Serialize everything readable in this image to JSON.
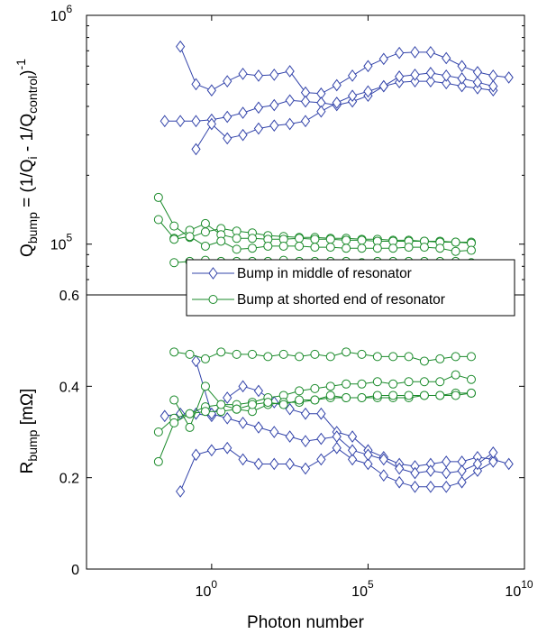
{
  "colors": {
    "blue": "#3344aa",
    "green": "#1a8a2a"
  },
  "xlabel": "Photon number",
  "x_ticks": [
    {
      "value": 0,
      "base": "10",
      "exp": "0"
    },
    {
      "value": 5,
      "base": "10",
      "exp": "5"
    },
    {
      "value": 10,
      "base": "10",
      "exp": "10"
    }
  ],
  "legend": {
    "entries": [
      {
        "label": "Bump in middle of resonator",
        "color": "#3344aa",
        "marker": "diamond"
      },
      {
        "label": "Bump at shorted end of resonator",
        "color": "#1a8a2a",
        "marker": "circle"
      }
    ]
  },
  "chart_data": [
    {
      "type": "line",
      "panel": "top",
      "ylabel": {
        "main": "Q",
        "main_sub": "bump",
        "eq": " = (1/Q",
        "sub1": "i",
        "mid": " - 1/Q",
        "sub2": "control",
        "close": ")",
        "sup": "-1"
      },
      "xscale": "log",
      "yscale": "log",
      "xlim": [
        -4,
        10
      ],
      "ylim": [
        60000,
        1000000
      ],
      "y_ticks": [
        {
          "value": 100000,
          "base": "10",
          "exp": "5"
        },
        {
          "value": 1000000,
          "base": "10",
          "exp": "6"
        }
      ],
      "series": [
        {
          "name": "Bump in middle of resonator",
          "color": "#3344aa",
          "marker": "diamond",
          "x": [
            -1,
            -0.5,
            0,
            0.5,
            1,
            1.5,
            2,
            2.5,
            3,
            3.5,
            4,
            4.5,
            5,
            5.5,
            6,
            6.5,
            7,
            7.5,
            8,
            8.5,
            9,
            9.5
          ],
          "y": [
            730000,
            500000,
            470000,
            515000,
            555000,
            545000,
            550000,
            570000,
            460000,
            455000,
            495000,
            545000,
            600000,
            645000,
            685000,
            690000,
            690000,
            650000,
            600000,
            565000,
            545000,
            535000
          ]
        },
        {
          "name": "",
          "color": "#3344aa",
          "marker": "diamond",
          "x": [
            -1.5,
            -1,
            -0.5,
            0,
            0.5,
            1,
            1.5,
            2,
            2.5,
            3,
            3.5,
            4,
            4.5,
            5,
            5.5,
            6,
            6.5,
            7,
            7.5,
            8,
            8.5,
            9
          ],
          "y": [
            345000,
            345000,
            345000,
            350000,
            360000,
            375000,
            395000,
            405000,
            425000,
            420000,
            415000,
            405000,
            420000,
            445000,
            490000,
            510000,
            515000,
            515000,
            505000,
            490000,
            480000,
            470000
          ]
        },
        {
          "name": "",
          "color": "#3344aa",
          "marker": "diamond",
          "x": [
            -0.5,
            0,
            0.5,
            1,
            1.5,
            2,
            2.5,
            3,
            3.5,
            4,
            4.5,
            5,
            5.5,
            6,
            6.5,
            7,
            7.5,
            8,
            8.5,
            9
          ],
          "y": [
            260000,
            335000,
            290000,
            300000,
            320000,
            330000,
            335000,
            345000,
            380000,
            415000,
            445000,
            465000,
            490000,
            540000,
            550000,
            560000,
            545000,
            530000,
            510000,
            490000
          ]
        }
      ]
    },
    {
      "type": "line",
      "panel": "top",
      "xscale": "log",
      "yscale": "log",
      "series": [
        {
          "name": "Bump at shorted end of resonator",
          "color": "#1a8a2a",
          "marker": "circle",
          "x": [
            -1.7,
            -1.2,
            -0.7,
            -0.2,
            0.3,
            0.8,
            1.3,
            1.8,
            2.3,
            2.8,
            3.3,
            3.8,
            4.3,
            4.8,
            5.3,
            5.8,
            6.3,
            6.8,
            7.3,
            7.8,
            8.3
          ],
          "y": [
            160000,
            120000,
            107000,
            113000,
            117000,
            114000,
            112000,
            109000,
            108000,
            107000,
            107000,
            106000,
            106000,
            105000,
            105000,
            104000,
            104000,
            103000,
            103000,
            102000,
            102000
          ]
        },
        {
          "name": "",
          "color": "#1a8a2a",
          "marker": "circle",
          "x": [
            -1.7,
            -1.2,
            -0.7,
            -0.2,
            0.3,
            0.8,
            1.3,
            1.8,
            2.3,
            2.8,
            3.3,
            3.8,
            4.3,
            4.8,
            5.3,
            5.8,
            6.3,
            6.8,
            7.3,
            7.8,
            8.3
          ],
          "y": [
            128000,
            106000,
            115000,
            123000,
            110000,
            106000,
            106000,
            105000,
            105000,
            106000,
            105000,
            105000,
            104000,
            104000,
            103000,
            103000,
            103000,
            103000,
            102000,
            102000,
            101000
          ]
        },
        {
          "name": "",
          "color": "#1a8a2a",
          "marker": "circle",
          "x": [
            -1.2,
            -0.7,
            -0.2,
            0.3,
            0.8,
            1.3,
            1.8,
            2.3,
            2.8,
            3.3,
            3.8,
            4.3,
            4.8,
            5.3,
            5.8,
            6.3,
            6.8,
            7.3,
            7.8,
            8.3
          ],
          "y": [
            105000,
            108000,
            98000,
            103000,
            95000,
            96000,
            98000,
            98000,
            98000,
            97000,
            97000,
            96000,
            96000,
            96000,
            96000,
            97000,
            97000,
            96000,
            93000,
            94000
          ]
        },
        {
          "name": "",
          "color": "#1a8a2a",
          "marker": "circle",
          "x": [
            -1.2,
            -0.7,
            -0.2,
            0.3,
            0.8,
            1.3,
            1.8,
            2.3,
            2.8,
            3.3,
            3.8,
            4.3,
            4.8,
            5.3,
            5.8,
            6.3,
            6.8,
            7.3,
            7.8,
            8.3
          ],
          "y": [
            83000,
            84000,
            85000,
            84000,
            84000,
            84000,
            84000,
            85000,
            84000,
            84000,
            84000,
            84000,
            83000,
            84000,
            84000,
            84000,
            84000,
            84000,
            84000,
            83000
          ]
        }
      ]
    },
    {
      "type": "line",
      "panel": "bottom",
      "ylabel": {
        "main": "R",
        "main_sub": "bump",
        "rest": " [mΩ]"
      },
      "xscale": "log",
      "yscale": "linear",
      "xlim": [
        -4,
        10
      ],
      "ylim": [
        0,
        0.6
      ],
      "y_ticks": [
        {
          "value": 0,
          "label": "0"
        },
        {
          "value": 0.2,
          "label": "0.2"
        },
        {
          "value": 0.4,
          "label": "0.4"
        },
        {
          "value": 0.6,
          "label": "0.6"
        }
      ],
      "series": [
        {
          "name": "",
          "color": "#3344aa",
          "marker": "diamond",
          "x": [
            -1.5,
            -1,
            -0.5,
            0,
            0.5,
            1,
            1.5,
            2,
            2.5,
            3,
            3.5,
            4,
            4.5,
            5,
            5.5,
            6,
            6.5,
            7,
            7.5,
            8,
            8.5,
            9,
            9.5
          ],
          "y": [
            0.335,
            0.34,
            0.34,
            0.335,
            0.375,
            0.4,
            0.39,
            0.365,
            0.35,
            0.34,
            0.34,
            0.3,
            0.29,
            0.26,
            0.245,
            0.23,
            0.225,
            0.23,
            0.235,
            0.235,
            0.245,
            0.24,
            0.23
          ]
        },
        {
          "name": "",
          "color": "#3344aa",
          "marker": "diamond",
          "x": [
            -1,
            -0.5,
            0,
            0.5,
            1,
            1.5,
            2,
            2.5,
            3,
            3.5,
            4,
            4.5,
            5,
            5.5,
            6,
            6.5,
            7,
            7.5,
            8,
            8.5,
            9
          ],
          "y": [
            0.17,
            0.25,
            0.26,
            0.265,
            0.24,
            0.23,
            0.23,
            0.23,
            0.22,
            0.24,
            0.265,
            0.24,
            0.23,
            0.205,
            0.19,
            0.18,
            0.18,
            0.18,
            0.19,
            0.215,
            0.235
          ]
        },
        {
          "name": "",
          "color": "#3344aa",
          "marker": "diamond",
          "x": [
            -0.5,
            0,
            0.5,
            1,
            1.5,
            2,
            2.5,
            3,
            3.5,
            4,
            4.5,
            5,
            5.5,
            6,
            6.5,
            7,
            7.5,
            8,
            8.5,
            9
          ],
          "y": [
            0.455,
            0.34,
            0.33,
            0.32,
            0.31,
            0.3,
            0.29,
            0.28,
            0.285,
            0.29,
            0.26,
            0.25,
            0.24,
            0.22,
            0.21,
            0.215,
            0.21,
            0.215,
            0.23,
            0.255
          ]
        },
        {
          "name": "",
          "color": "#1a8a2a",
          "marker": "circle",
          "x": [
            -1.2,
            -0.7,
            -0.2,
            0.3,
            0.8,
            1.3,
            1.8,
            2.3,
            2.8,
            3.3,
            3.8,
            4.3,
            4.8,
            5.3,
            5.8,
            6.3,
            6.8,
            7.3,
            7.8,
            8.3
          ],
          "y": [
            0.475,
            0.47,
            0.46,
            0.475,
            0.47,
            0.47,
            0.465,
            0.47,
            0.465,
            0.47,
            0.465,
            0.475,
            0.47,
            0.465,
            0.465,
            0.465,
            0.455,
            0.46,
            0.465,
            0.465
          ]
        },
        {
          "name": "",
          "color": "#1a8a2a",
          "marker": "circle",
          "x": [
            -1.7,
            -1.2,
            -0.7,
            -0.2,
            0.3,
            0.8,
            1.3,
            1.8,
            2.3,
            2.8,
            3.3,
            3.8,
            4.3,
            4.8,
            5.3,
            5.8,
            6.3,
            6.8,
            7.3,
            7.8,
            8.3
          ],
          "y": [
            0.3,
            0.33,
            0.34,
            0.355,
            0.36,
            0.36,
            0.365,
            0.375,
            0.38,
            0.39,
            0.395,
            0.4,
            0.405,
            0.405,
            0.41,
            0.405,
            0.41,
            0.41,
            0.41,
            0.425,
            0.415
          ]
        },
        {
          "name": "",
          "color": "#1a8a2a",
          "marker": "circle",
          "x": [
            -1.7,
            -1.2,
            -0.7,
            -0.2,
            0.3,
            0.8,
            1.3,
            1.8,
            2.3,
            2.8,
            3.3,
            3.8,
            4.3,
            4.8,
            5.3,
            5.8,
            6.3,
            6.8,
            7.3,
            7.8,
            8.3
          ],
          "y": [
            0.235,
            0.32,
            0.34,
            0.345,
            0.345,
            0.35,
            0.345,
            0.36,
            0.365,
            0.365,
            0.37,
            0.375,
            0.375,
            0.375,
            0.375,
            0.375,
            0.375,
            0.38,
            0.38,
            0.385,
            0.385
          ]
        },
        {
          "name": "",
          "color": "#1a8a2a",
          "marker": "circle",
          "x": [
            -1.2,
            -0.7,
            -0.2,
            0.3,
            0.8,
            1.3,
            1.8,
            2.3,
            2.8,
            3.3,
            3.8,
            4.3,
            4.8,
            5.3,
            5.8,
            6.3,
            6.8,
            7.3,
            7.8,
            8.3
          ],
          "y": [
            0.37,
            0.31,
            0.4,
            0.36,
            0.35,
            0.36,
            0.365,
            0.36,
            0.37,
            0.37,
            0.38,
            0.375,
            0.375,
            0.38,
            0.38,
            0.38,
            0.38,
            0.38,
            0.38,
            0.385
          ]
        }
      ]
    }
  ]
}
